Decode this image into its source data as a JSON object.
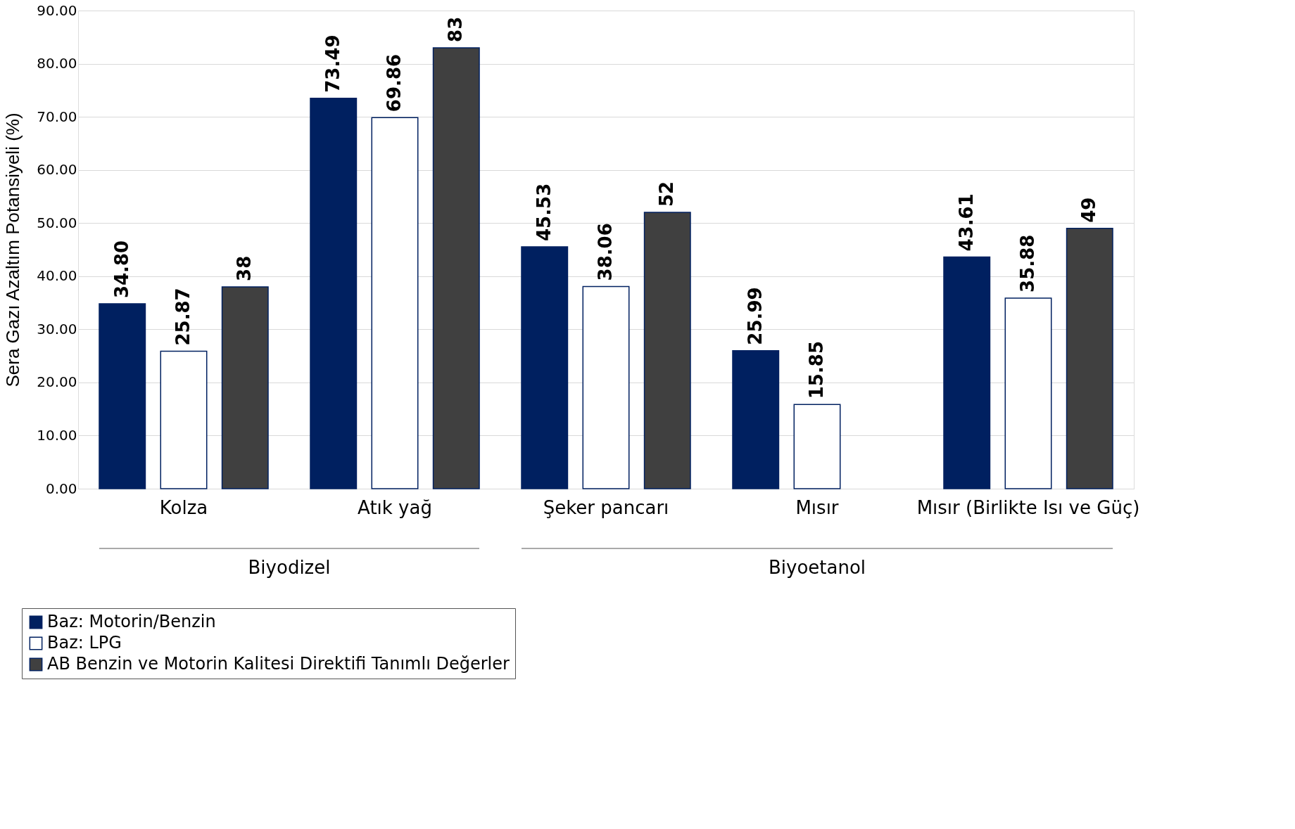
{
  "chart_data": {
    "type": "bar",
    "categories": [
      "Kolza",
      "Atık yağ",
      "Şeker pancarı",
      "Mısır",
      "Mısır (Birlikte Isı ve Güç)"
    ],
    "ylabel": "Sera Gazı Azaltım Potansiyeli (%)",
    "series": [
      {
        "name": "Baz: Motorin/Benzin",
        "color": "#002060",
        "values": [
          34.8,
          73.49,
          45.53,
          25.99,
          43.61
        ],
        "value_labels": [
          "34.80",
          "73.49",
          "45.53",
          "25.99",
          "43.61"
        ]
      },
      {
        "name": "Baz: LPG",
        "color": "#ffffff",
        "values": [
          25.87,
          69.86,
          38.06,
          15.85,
          35.88
        ],
        "value_labels": [
          "25.87",
          "69.86",
          "38.06",
          "15.85",
          "35.88"
        ]
      },
      {
        "name": "AB Benzin ve Motorin Kalitesi Direktifi Tanımlı Değerler",
        "color": "#404040",
        "values": [
          38,
          83,
          52,
          null,
          49
        ],
        "value_labels": [
          "38",
          "83",
          "52",
          null,
          "49"
        ]
      }
    ],
    "ylim": [
      0,
      90
    ],
    "yticks": [
      {
        "value": 0,
        "label": "0.00"
      },
      {
        "value": 10,
        "label": "10.00"
      },
      {
        "value": 20,
        "label": "20.00"
      },
      {
        "value": 30,
        "label": "30.00"
      },
      {
        "value": 40,
        "label": "40.00"
      },
      {
        "value": 50,
        "label": "50.00"
      },
      {
        "value": 60,
        "label": "60.00"
      },
      {
        "value": 70,
        "label": "70.00"
      },
      {
        "value": 80,
        "label": "80.00"
      },
      {
        "value": 90,
        "label": "90.00"
      }
    ],
    "grid": "y",
    "legend": "bottom left",
    "annotations": [
      "Biyodizel",
      "Biyoetanol"
    ]
  }
}
